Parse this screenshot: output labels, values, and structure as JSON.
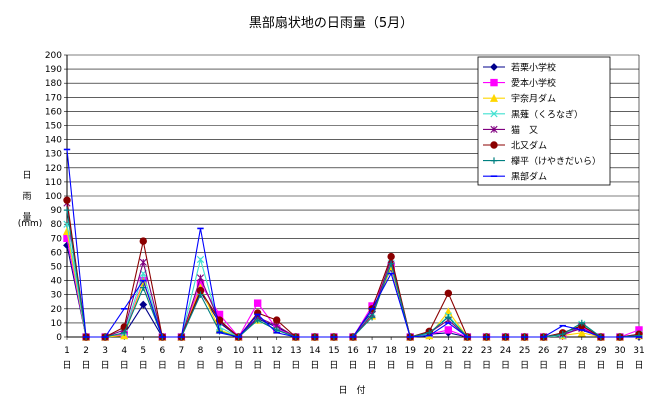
{
  "chart_data": {
    "type": "line",
    "title": "黒部扇状地の日雨量（5月）",
    "ylabel_chars": [
      "日",
      "雨",
      "量"
    ],
    "yunit": "(mm)",
    "xlabel": "日　付",
    "ylim": [
      0,
      200
    ],
    "ytick_step": 10,
    "grid": "horizontal",
    "legend_position": "top-right",
    "x": [
      1,
      2,
      3,
      4,
      5,
      6,
      7,
      8,
      9,
      10,
      11,
      12,
      13,
      14,
      15,
      16,
      17,
      18,
      19,
      20,
      21,
      22,
      23,
      24,
      25,
      26,
      27,
      28,
      29,
      30,
      31
    ],
    "x_suffix": "日",
    "series": [
      {
        "name": "若栗小学校",
        "color": "#00008b",
        "marker": "diamond",
        "values": [
          65,
          0,
          0,
          2,
          23,
          0,
          0,
          32,
          10,
          0,
          13,
          7,
          0,
          0,
          0,
          0,
          18,
          49,
          0,
          2,
          3,
          0,
          0,
          0,
          0,
          0,
          1,
          8,
          0,
          0,
          0
        ]
      },
      {
        "name": "愛本小学校",
        "color": "#ff00ff",
        "marker": "square",
        "values": [
          70,
          0,
          0,
          2,
          40,
          0,
          0,
          38,
          16,
          0,
          24,
          6,
          0,
          0,
          0,
          0,
          22,
          50,
          0,
          2,
          5,
          0,
          0,
          0,
          0,
          0,
          1,
          7,
          0,
          0,
          5
        ]
      },
      {
        "name": "宇奈月ダム",
        "color": "#ffd700",
        "marker": "triangle",
        "values": [
          75,
          0,
          0,
          1,
          39,
          0,
          0,
          35,
          5,
          0,
          12,
          5,
          0,
          0,
          0,
          0,
          15,
          50,
          0,
          1,
          18,
          0,
          0,
          0,
          0,
          0,
          1,
          3,
          0,
          0,
          1
        ]
      },
      {
        "name": "黒薙（くろなぎ）",
        "color": "#40e0d0",
        "marker": "x",
        "values": [
          80,
          0,
          0,
          3,
          45,
          0,
          0,
          55,
          7,
          0,
          12,
          5,
          0,
          0,
          0,
          0,
          17,
          52,
          0,
          2,
          15,
          0,
          0,
          0,
          0,
          0,
          1,
          9,
          0,
          0,
          2
        ]
      },
      {
        "name": "猫　又",
        "color": "#800080",
        "marker": "star",
        "values": [
          95,
          0,
          0,
          5,
          53,
          0,
          0,
          42,
          11,
          0,
          14,
          8,
          0,
          0,
          0,
          0,
          16,
          55,
          0,
          3,
          12,
          0,
          0,
          0,
          0,
          0,
          2,
          6,
          0,
          0,
          1
        ]
      },
      {
        "name": "北又ダム",
        "color": "#8b0000",
        "marker": "circle",
        "values": [
          97,
          0,
          0,
          7,
          68,
          0,
          0,
          33,
          12,
          0,
          17,
          12,
          0,
          0,
          0,
          0,
          20,
          57,
          0,
          4,
          31,
          0,
          0,
          0,
          0,
          0,
          3,
          8,
          0,
          0,
          2
        ]
      },
      {
        "name": "欅平（けやきだいら）",
        "color": "#008080",
        "marker": "plus",
        "values": [
          90,
          0,
          0,
          3,
          35,
          0,
          0,
          30,
          4,
          0,
          12,
          5,
          0,
          0,
          0,
          0,
          14,
          52,
          0,
          3,
          14,
          0,
          0,
          0,
          0,
          0,
          2,
          10,
          0,
          0,
          1
        ]
      },
      {
        "name": "黒部ダム",
        "color": "#0000ff",
        "marker": "dash",
        "values": [
          133,
          0,
          0,
          20,
          40,
          0,
          0,
          77,
          3,
          0,
          16,
          3,
          0,
          0,
          0,
          0,
          20,
          45,
          0,
          1,
          10,
          0,
          0,
          0,
          0,
          0,
          8,
          5,
          0,
          0,
          0
        ]
      }
    ]
  }
}
